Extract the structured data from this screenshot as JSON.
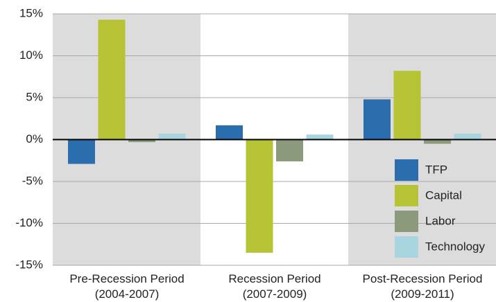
{
  "chart_data": {
    "type": "bar",
    "categories": [
      "Pre-Recession Period\n(2004-2007)",
      "Recession Period\n(2007-2009)",
      "Post-Recession Period\n(2009-2011)"
    ],
    "series": [
      {
        "name": "TFP",
        "color": "#2a6ead",
        "values": [
          -2.9,
          1.7,
          4.8
        ]
      },
      {
        "name": "Capital",
        "color": "#b5c334",
        "values": [
          14.3,
          -13.5,
          8.2
        ]
      },
      {
        "name": "Labor",
        "color": "#8a9a7b",
        "values": [
          -0.3,
          -2.6,
          -0.5
        ]
      },
      {
        "name": "Technology",
        "color": "#a9d5e0",
        "values": [
          0.7,
          0.6,
          0.7
        ]
      }
    ],
    "ylim": [
      -15,
      15
    ],
    "yticks": [
      {
        "value": -15,
        "label": "-15%"
      },
      {
        "value": -10,
        "label": "-10%"
      },
      {
        "value": -5,
        "label": "-5%"
      },
      {
        "value": 0,
        "label": "0%"
      },
      {
        "value": 5,
        "label": "5%"
      },
      {
        "value": 10,
        "label": "10%"
      },
      {
        "value": 15,
        "label": "15%"
      }
    ],
    "grid": true,
    "legend": "lower right"
  }
}
